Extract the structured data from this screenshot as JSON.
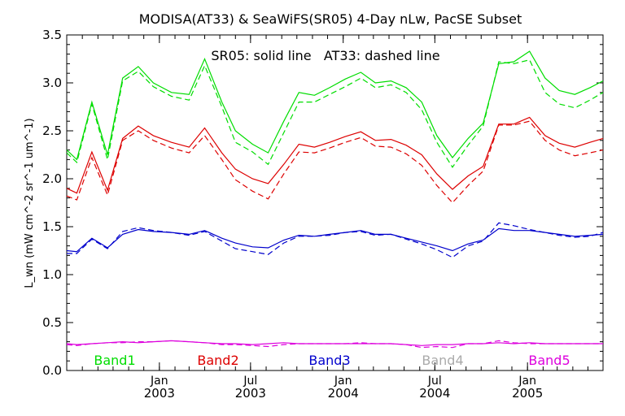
{
  "chart_data": {
    "type": "line",
    "title": "MODISA(AT33) & SeaWiFS(SR05) 4-Day nLw, PacSE Subset",
    "annotation": "SR05: solid line   AT33: dashed line",
    "ylabel": "L_wn (mW cm^-2 sr^-1 um^-1)",
    "ylim": [
      0.0,
      3.5
    ],
    "yticks": [
      {
        "v": 0.0,
        "label": "0.0"
      },
      {
        "v": 0.5,
        "label": "0.5"
      },
      {
        "v": 1.0,
        "label": "1.0"
      },
      {
        "v": 1.5,
        "label": "1.5"
      },
      {
        "v": 2.0,
        "label": "2.0"
      },
      {
        "v": 2.5,
        "label": "2.5"
      },
      {
        "v": 3.0,
        "label": "3.0"
      },
      {
        "v": 3.5,
        "label": "3.5"
      }
    ],
    "xlim": [
      "2002-07-01",
      "2005-05-31"
    ],
    "xticks": [
      {
        "date": "2003-01-01",
        "month": "Jan",
        "year": "2003"
      },
      {
        "date": "2003-07-01",
        "month": "Jul",
        "year": "2003"
      },
      {
        "date": "2004-01-01",
        "month": "Jan",
        "year": "2004"
      },
      {
        "date": "2004-07-01",
        "month": "Jul",
        "year": "2004"
      },
      {
        "date": "2005-01-01",
        "month": "Jan",
        "year": "2005"
      }
    ],
    "x": [
      "2002-07-01",
      "2002-07-21",
      "2002-08-20",
      "2002-09-20",
      "2002-10-20",
      "2002-11-20",
      "2002-12-20",
      "2003-01-25",
      "2003-03-01",
      "2003-04-01",
      "2003-05-05",
      "2003-06-01",
      "2003-07-05",
      "2003-08-05",
      "2003-09-05",
      "2003-10-05",
      "2003-11-05",
      "2003-12-05",
      "2004-01-05",
      "2004-02-05",
      "2004-03-05",
      "2004-04-05",
      "2004-05-05",
      "2004-06-05",
      "2004-07-05",
      "2004-08-05",
      "2004-09-05",
      "2004-10-05",
      "2004-11-05",
      "2004-12-05",
      "2005-01-05",
      "2005-02-05",
      "2005-03-05",
      "2005-04-05",
      "2005-05-05",
      "2005-05-31"
    ],
    "series": [
      {
        "name": "Band1",
        "color": "#00dd00",
        "solid": [
          2.3,
          2.2,
          2.8,
          2.25,
          3.05,
          3.17,
          3.0,
          2.9,
          2.88,
          3.25,
          2.8,
          2.5,
          2.36,
          2.27,
          2.6,
          2.9,
          2.87,
          2.95,
          3.04,
          3.11,
          3.0,
          3.02,
          2.95,
          2.8,
          2.45,
          2.22,
          2.42,
          2.58,
          3.2,
          3.22,
          3.33,
          3.05,
          2.92,
          2.88,
          2.95,
          3.02
        ],
        "dashed": [
          2.27,
          2.17,
          2.78,
          2.2,
          3.02,
          3.12,
          2.96,
          2.86,
          2.82,
          3.18,
          2.75,
          2.38,
          2.28,
          2.15,
          2.48,
          2.8,
          2.8,
          2.88,
          2.96,
          3.05,
          2.95,
          2.98,
          2.9,
          2.72,
          2.38,
          2.12,
          2.35,
          2.55,
          3.22,
          3.2,
          3.24,
          2.9,
          2.78,
          2.74,
          2.82,
          2.9
        ]
      },
      {
        "name": "Band2",
        "color": "#dd0000",
        "solid": [
          1.9,
          1.85,
          2.28,
          1.88,
          2.42,
          2.55,
          2.45,
          2.38,
          2.33,
          2.53,
          2.27,
          2.1,
          2.0,
          1.95,
          2.15,
          2.36,
          2.33,
          2.38,
          2.44,
          2.49,
          2.4,
          2.41,
          2.35,
          2.25,
          2.05,
          1.89,
          2.03,
          2.13,
          2.57,
          2.57,
          2.64,
          2.45,
          2.37,
          2.33,
          2.38,
          2.42
        ],
        "dashed": [
          1.82,
          1.78,
          2.22,
          1.83,
          2.4,
          2.5,
          2.4,
          2.32,
          2.27,
          2.45,
          2.2,
          1.99,
          1.87,
          1.79,
          2.05,
          2.28,
          2.27,
          2.32,
          2.38,
          2.43,
          2.34,
          2.33,
          2.26,
          2.14,
          1.93,
          1.75,
          1.93,
          2.08,
          2.56,
          2.56,
          2.6,
          2.4,
          2.3,
          2.24,
          2.27,
          2.3
        ]
      },
      {
        "name": "Band3",
        "color": "#0000cc",
        "solid": [
          1.25,
          1.24,
          1.38,
          1.28,
          1.42,
          1.47,
          1.45,
          1.44,
          1.42,
          1.46,
          1.38,
          1.33,
          1.29,
          1.28,
          1.36,
          1.41,
          1.4,
          1.42,
          1.44,
          1.46,
          1.42,
          1.42,
          1.38,
          1.34,
          1.3,
          1.25,
          1.32,
          1.36,
          1.48,
          1.46,
          1.46,
          1.44,
          1.42,
          1.4,
          1.41,
          1.42
        ],
        "dashed": [
          1.22,
          1.22,
          1.37,
          1.27,
          1.45,
          1.49,
          1.46,
          1.44,
          1.41,
          1.45,
          1.35,
          1.27,
          1.24,
          1.21,
          1.33,
          1.4,
          1.4,
          1.41,
          1.44,
          1.45,
          1.41,
          1.42,
          1.37,
          1.32,
          1.26,
          1.18,
          1.3,
          1.35,
          1.54,
          1.51,
          1.47,
          1.44,
          1.41,
          1.39,
          1.4,
          1.44
        ]
      },
      {
        "name": "Band4",
        "color": "#aaaaaa",
        "solid": [],
        "dashed": []
      },
      {
        "name": "Band5",
        "color": "#dd00dd",
        "solid": [
          0.28,
          0.27,
          0.28,
          0.29,
          0.3,
          0.29,
          0.3,
          0.31,
          0.3,
          0.29,
          0.28,
          0.28,
          0.27,
          0.28,
          0.29,
          0.28,
          0.28,
          0.28,
          0.28,
          0.28,
          0.28,
          0.28,
          0.27,
          0.26,
          0.27,
          0.27,
          0.28,
          0.28,
          0.29,
          0.28,
          0.29,
          0.28,
          0.28,
          0.28,
          0.28,
          0.28
        ],
        "dashed": [
          0.27,
          0.26,
          0.28,
          0.29,
          0.29,
          0.3,
          0.3,
          0.31,
          0.3,
          0.29,
          0.27,
          0.27,
          0.26,
          0.25,
          0.27,
          0.28,
          0.28,
          0.28,
          0.28,
          0.29,
          0.28,
          0.28,
          0.27,
          0.24,
          0.25,
          0.24,
          0.28,
          0.28,
          0.31,
          0.29,
          0.28,
          0.28,
          0.28,
          0.28,
          0.28,
          0.28
        ]
      }
    ],
    "legend_placement": "bottom (inside plot)"
  }
}
